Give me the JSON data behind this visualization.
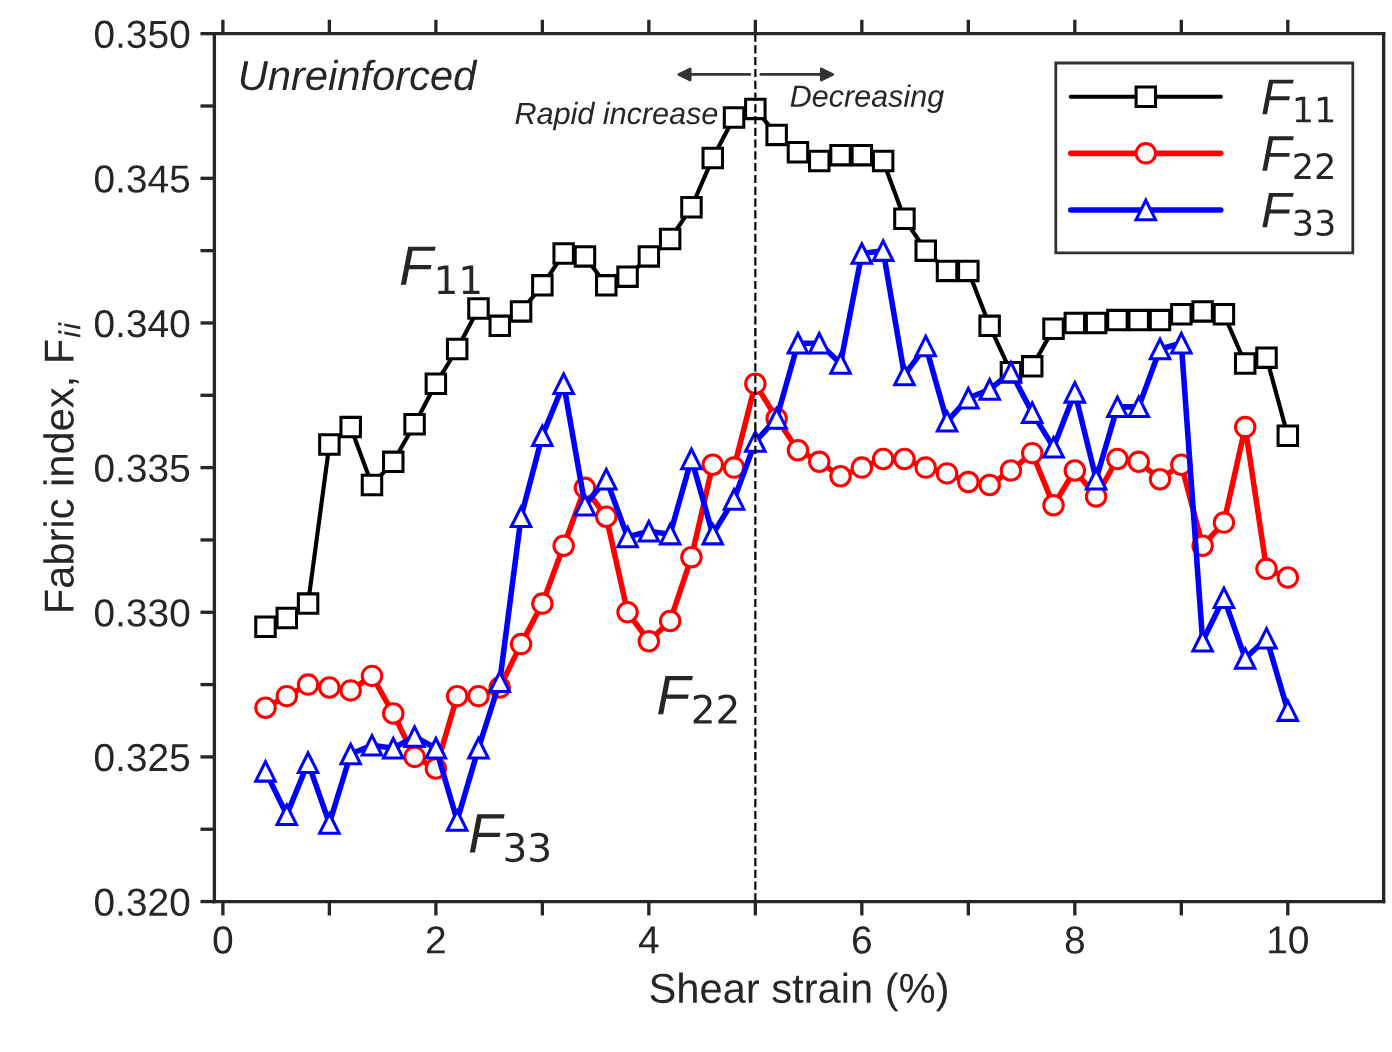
{
  "chart_data": {
    "type": "line",
    "xlabel": "Shear strain (%)",
    "ylabel": "Fabric index, F$_{ii}$",
    "x": [
      0.4,
      0.6,
      0.8,
      1.0,
      1.2,
      1.4,
      1.6,
      1.8,
      2.0,
      2.2,
      2.4,
      2.6,
      2.8,
      3.0,
      3.2,
      3.4,
      3.6,
      3.8,
      4.0,
      4.2,
      4.4,
      4.6,
      4.8,
      5.0,
      5.2,
      5.4,
      5.6,
      5.8,
      6.0,
      6.2,
      6.4,
      6.6,
      6.8,
      7.0,
      7.2,
      7.4,
      7.6,
      7.8,
      8.0,
      8.2,
      8.4,
      8.6,
      8.8,
      9.0,
      9.2,
      9.4,
      9.6,
      9.8,
      10.0
    ],
    "series": [
      {
        "name": "F$_{11}$",
        "color": "#000000",
        "marker": "square",
        "values": [
          0.3295,
          0.3298,
          0.3303,
          0.3358,
          0.3364,
          0.3344,
          0.3352,
          0.3365,
          0.3379,
          0.3391,
          0.3405,
          0.3399,
          0.3404,
          0.3413,
          0.3424,
          0.3423,
          0.3413,
          0.3416,
          0.3423,
          0.3429,
          0.344,
          0.3457,
          0.3471,
          0.3474,
          0.3465,
          0.3459,
          0.3456,
          0.3458,
          0.3458,
          0.3456,
          0.3436,
          0.3425,
          0.3418,
          0.3418,
          0.3399,
          0.3383,
          0.3385,
          0.3398,
          0.34,
          0.34,
          0.3401,
          0.3401,
          0.3401,
          0.3403,
          0.3404,
          0.3403,
          0.3386,
          0.3388,
          0.3361
        ]
      },
      {
        "name": "F$_{22}$",
        "color": "#ff0000",
        "marker": "circle",
        "values": [
          0.3267,
          0.3271,
          0.3275,
          0.3274,
          0.3273,
          0.3278,
          0.3265,
          0.325,
          0.3246,
          0.3271,
          0.3271,
          0.3274,
          0.3289,
          0.3303,
          0.3323,
          0.3343,
          0.3333,
          0.33,
          0.329,
          0.3297,
          0.3319,
          0.3351,
          0.335,
          0.3379,
          0.3367,
          0.3356,
          0.3352,
          0.3347,
          0.335,
          0.3353,
          0.3353,
          0.335,
          0.3348,
          0.3345,
          0.3344,
          0.3349,
          0.3355,
          0.3337,
          0.3349,
          0.334,
          0.3353,
          0.3352,
          0.3346,
          0.3351,
          0.3323,
          0.3331,
          0.3364,
          0.3315,
          0.3312
        ]
      },
      {
        "name": "F$_{33}$",
        "color": "#0000ff",
        "marker": "triangle",
        "values": [
          0.3245,
          0.323,
          0.3248,
          0.3227,
          0.3251,
          0.3254,
          0.3253,
          0.3257,
          0.3253,
          0.3228,
          0.3253,
          0.3276,
          0.3333,
          0.3361,
          0.3379,
          0.3337,
          0.3346,
          0.3326,
          0.3328,
          0.3327,
          0.3353,
          0.3327,
          0.3339,
          0.3359,
          0.3367,
          0.3393,
          0.3393,
          0.3386,
          0.3424,
          0.3425,
          0.3382,
          0.3392,
          0.3366,
          0.3374,
          0.3377,
          0.3383,
          0.3369,
          0.3357,
          0.3376,
          0.3346,
          0.3371,
          0.3371,
          0.3391,
          0.3393,
          0.329,
          0.3305,
          0.3284,
          0.3291,
          0.3266
        ]
      }
    ],
    "xlim": [
      -0.08,
      10.9
    ],
    "xticks": [
      0,
      {
        "value": 1,
        "label": null
      },
      2,
      {
        "value": 3,
        "label": null
      },
      4,
      {
        "value": 5,
        "label": null
      },
      6,
      {
        "value": 7,
        "label": null
      },
      8,
      {
        "value": 9,
        "label": null
      },
      10
    ],
    "ylim": [
      0.32,
      0.35
    ],
    "yticks": [
      {
        "value": 0.32,
        "label": "0.320"
      },
      {
        "value": 0.3225,
        "label": null
      },
      {
        "value": 0.325,
        "label": "0.325"
      },
      {
        "value": 0.3275,
        "label": null
      },
      {
        "value": 0.33,
        "label": "0.330"
      },
      {
        "value": 0.3325,
        "label": null
      },
      {
        "value": 0.335,
        "label": "0.335"
      },
      {
        "value": 0.3375,
        "label": null
      },
      {
        "value": 0.34,
        "label": "0.340"
      },
      {
        "value": 0.3425,
        "label": null
      },
      {
        "value": 0.345,
        "label": "0.345"
      },
      {
        "value": 0.3475,
        "label": null
      },
      {
        "value": 0.35,
        "label": "0.350"
      }
    ],
    "ref_lines": [
      {
        "axis": "x",
        "value": 5,
        "color": "#000000",
        "line_style": "dashed"
      }
    ],
    "annotations": [
      "Unreinforced",
      "Rapid increase",
      "Decreasing",
      "F$_{11}$",
      "F$_{22}$",
      "F$_{33}$"
    ],
    "legend": "top right",
    "grid": false,
    "line_style": "solid"
  }
}
